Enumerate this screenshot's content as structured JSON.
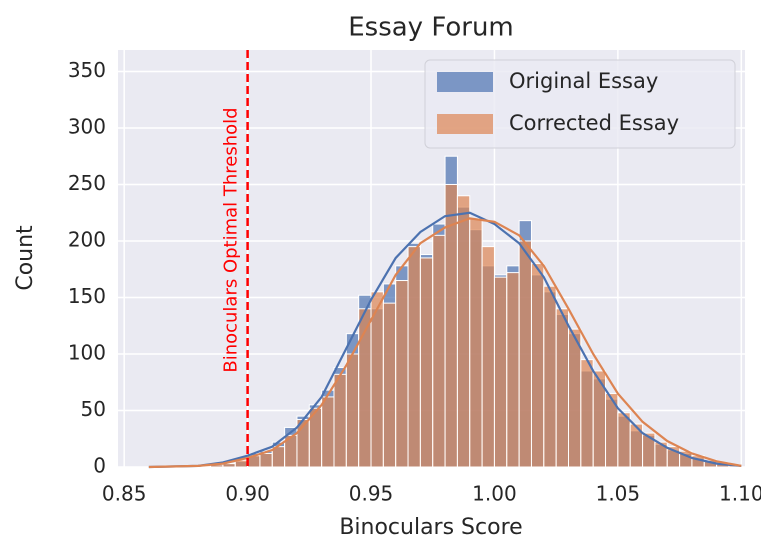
{
  "chart_data": {
    "type": "histogram",
    "title": "Essay Forum",
    "x_label": "Binoculars Score",
    "y_label": "Count",
    "bins": [
      0.86,
      0.865,
      0.87,
      0.875,
      0.88,
      0.885,
      0.89,
      0.895,
      0.9,
      0.905,
      0.91,
      0.915,
      0.92,
      0.925,
      0.93,
      0.935,
      0.94,
      0.945,
      0.95,
      0.955,
      0.96,
      0.965,
      0.97,
      0.975,
      0.98,
      0.985,
      0.99,
      0.995,
      1.0,
      1.005,
      1.01,
      1.015,
      1.02,
      1.025,
      1.03,
      1.035,
      1.04,
      1.045,
      1.05,
      1.055,
      1.06,
      1.065,
      1.07,
      1.075,
      1.08,
      1.085,
      1.09,
      1.095,
      1.1
    ],
    "series": [
      {
        "name": "Original Essay",
        "color": "#4c72b0",
        "values": [
          0,
          0,
          0,
          1,
          1,
          2,
          3,
          5,
          12,
          14,
          22,
          35,
          45,
          55,
          68,
          88,
          118,
          152,
          140,
          162,
          178,
          198,
          188,
          215,
          275,
          230,
          210,
          178,
          170,
          178,
          218,
          170,
          155,
          135,
          118,
          85,
          78,
          60,
          45,
          32,
          28,
          20,
          15,
          12,
          8,
          5,
          3,
          1
        ],
        "kde_values": [
          0,
          1,
          4,
          10,
          18,
          35,
          62,
          105,
          148,
          185,
          208,
          222,
          225,
          215,
          198,
          168,
          125,
          85,
          52,
          30,
          17,
          8,
          3,
          1
        ]
      },
      {
        "name": "Corrected Essay",
        "color": "#dd8452",
        "values": [
          0,
          0,
          0,
          1,
          1,
          2,
          3,
          6,
          10,
          12,
          18,
          28,
          42,
          52,
          62,
          82,
          100,
          140,
          155,
          145,
          165,
          195,
          185,
          205,
          250,
          240,
          220,
          195,
          168,
          172,
          200,
          180,
          160,
          140,
          122,
          95,
          85,
          65,
          48,
          38,
          30,
          22,
          18,
          14,
          10,
          6,
          4,
          2
        ],
        "kde_values": [
          0,
          1,
          3,
          8,
          15,
          30,
          55,
          90,
          130,
          170,
          198,
          212,
          220,
          217,
          205,
          178,
          140,
          100,
          65,
          40,
          23,
          12,
          5,
          1
        ]
      }
    ],
    "kde_x": [
      0.86,
      0.88,
      0.89,
      0.9,
      0.91,
      0.92,
      0.93,
      0.94,
      0.95,
      0.96,
      0.97,
      0.98,
      0.99,
      1.0,
      1.01,
      1.02,
      1.03,
      1.04,
      1.05,
      1.06,
      1.07,
      1.08,
      1.09,
      1.1
    ],
    "threshold": {
      "x": 0.9,
      "label": "Binoculars Optimal Threshold",
      "color": "#ff0000"
    },
    "xlim": [
      0.8475,
      1.1015
    ],
    "ylim": [
      0,
      369
    ],
    "xticks": [
      0.85,
      {
        "value": 0.9,
        "label": "0.90"
      },
      0.95,
      {
        "value": 1.0,
        "label": "1.00"
      },
      1.05,
      {
        "value": 1.1,
        "label": "1.10"
      }
    ],
    "yticks": [
      0,
      50,
      100,
      150,
      200,
      250,
      300,
      350
    ],
    "grid": true,
    "legend": "upper right"
  }
}
